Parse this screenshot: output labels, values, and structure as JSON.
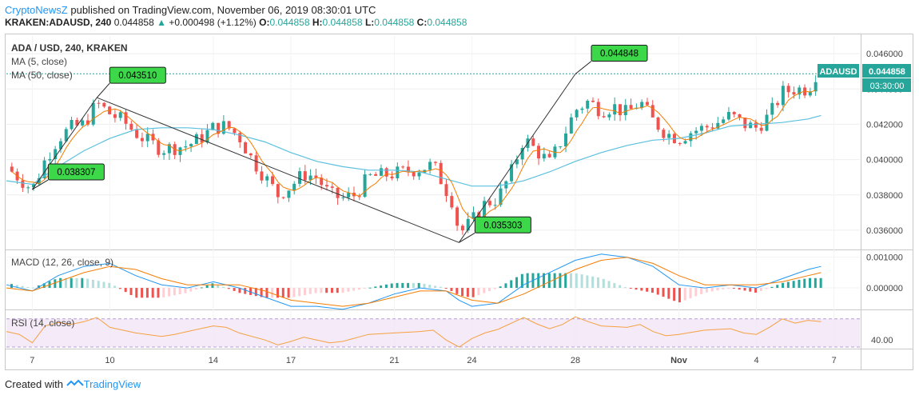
{
  "header": {
    "author": "CryptoNewsZ",
    "published_text": " published on TradingView.com, November 06, 2019 08:30:01 UTC"
  },
  "ticker": {
    "symbol": "KRAKEN:ADAUSD, 240",
    "last": "0.044858",
    "arrow": "▲",
    "change": "+0.000498 (+1.12%)",
    "o_label": "O:",
    "o": "0.044858",
    "h_label": "H:",
    "h": "0.044858",
    "l_label": "L:",
    "l": "0.044858",
    "c_label": "C:",
    "c": "0.044858"
  },
  "legend": {
    "title": "ADA / USD, 240, KRAKEN",
    "ma5": "MA (5, close)",
    "ma50": "MA (50, close)",
    "macd": "MACD (12, 26, close, 9)",
    "rsi": "RSI (14, close)"
  },
  "price_tag": {
    "symbol": "ADAUSD",
    "value": "0.044858",
    "countdown": "03:30:00"
  },
  "callouts": [
    "0.043510",
    "0.038307",
    "0.044848",
    "0.035303"
  ],
  "footer": {
    "created": "Created with",
    "brand": "TradingView"
  },
  "chart_data": {
    "type": "candlestick",
    "main": {
      "y_ticks": [
        "0.046000",
        "0.044000",
        "0.042000",
        "0.040000",
        "0.038000",
        "0.036000"
      ],
      "ylim": [
        0.035,
        0.047
      ],
      "x_ticks": [
        "7",
        "10",
        "14",
        "17",
        "21",
        "24",
        "28",
        "Nov",
        "4",
        "7"
      ],
      "x_tick_days": [
        7,
        10,
        14,
        17,
        21,
        24,
        28,
        32,
        35,
        38
      ],
      "xlim_days": [
        6.0,
        39.0
      ],
      "last_price": 0.044858,
      "trend_points": [
        {
          "day": 7.0,
          "value": 0.038307
        },
        {
          "day": 9.5,
          "value": 0.04351
        },
        {
          "day": 23.5,
          "value": 0.035303
        },
        {
          "day": 28.0,
          "value": 0.044848
        }
      ],
      "price_path": [
        [
          6.0,
          0.0396
        ],
        [
          7.0,
          0.0383
        ],
        [
          7.5,
          0.04
        ],
        [
          8.0,
          0.0412
        ],
        [
          8.5,
          0.0418
        ],
        [
          9.0,
          0.042
        ],
        [
          9.5,
          0.0432
        ],
        [
          10.0,
          0.0426
        ],
        [
          10.5,
          0.0422
        ],
        [
          11.0,
          0.0415
        ],
        [
          11.5,
          0.041
        ],
        [
          12.0,
          0.0406
        ],
        [
          13.0,
          0.0408
        ],
        [
          13.5,
          0.0412
        ],
        [
          14.0,
          0.0418
        ],
        [
          14.5,
          0.0419
        ],
        [
          15.0,
          0.0413
        ],
        [
          15.5,
          0.04
        ],
        [
          16.0,
          0.039
        ],
        [
          16.5,
          0.038
        ],
        [
          17.0,
          0.0385
        ],
        [
          17.5,
          0.0392
        ],
        [
          18.0,
          0.039
        ],
        [
          18.5,
          0.038
        ],
        [
          19.0,
          0.0378
        ],
        [
          19.5,
          0.038
        ],
        [
          20.0,
          0.039
        ],
        [
          21.0,
          0.0392
        ],
        [
          22.0,
          0.0395
        ],
        [
          22.5,
          0.0397
        ],
        [
          23.0,
          0.0383
        ],
        [
          23.3,
          0.0375
        ],
        [
          23.5,
          0.0358
        ],
        [
          24.0,
          0.0365
        ],
        [
          24.5,
          0.0375
        ],
        [
          25.0,
          0.0378
        ],
        [
          25.5,
          0.0392
        ],
        [
          26.0,
          0.0412
        ],
        [
          26.5,
          0.0405
        ],
        [
          27.0,
          0.0398
        ],
        [
          27.5,
          0.0412
        ],
        [
          28.0,
          0.0428
        ],
        [
          28.5,
          0.0433
        ],
        [
          29.0,
          0.0428
        ],
        [
          29.5,
          0.043
        ],
        [
          30.0,
          0.0426
        ],
        [
          30.5,
          0.0433
        ],
        [
          31.0,
          0.0422
        ],
        [
          31.5,
          0.0415
        ],
        [
          32.0,
          0.0412
        ],
        [
          32.5,
          0.0416
        ],
        [
          33.0,
          0.0418
        ],
        [
          33.5,
          0.0421
        ],
        [
          34.0,
          0.0425
        ],
        [
          34.5,
          0.042
        ],
        [
          35.0,
          0.0418
        ],
        [
          35.5,
          0.0425
        ],
        [
          36.0,
          0.0438
        ],
        [
          36.5,
          0.044
        ],
        [
          37.0,
          0.044
        ],
        [
          37.3,
          0.04486
        ]
      ],
      "ma50_path": [
        [
          6.0,
          0.0388
        ],
        [
          7.0,
          0.0386
        ],
        [
          8.0,
          0.0396
        ],
        [
          9.0,
          0.0405
        ],
        [
          10.0,
          0.0412
        ],
        [
          11.0,
          0.0417
        ],
        [
          12.0,
          0.0418
        ],
        [
          13.0,
          0.0418
        ],
        [
          14.0,
          0.0417
        ],
        [
          15.0,
          0.0414
        ],
        [
          16.0,
          0.041
        ],
        [
          17.0,
          0.0404
        ],
        [
          18.0,
          0.0399
        ],
        [
          19.0,
          0.0396
        ],
        [
          20.0,
          0.0394
        ],
        [
          21.0,
          0.0394
        ],
        [
          22.0,
          0.0393
        ],
        [
          23.0,
          0.0389
        ],
        [
          24.0,
          0.0385
        ],
        [
          25.0,
          0.0385
        ],
        [
          26.0,
          0.0388
        ],
        [
          27.0,
          0.0393
        ],
        [
          28.0,
          0.0399
        ],
        [
          29.0,
          0.0404
        ],
        [
          30.0,
          0.0408
        ],
        [
          31.0,
          0.0411
        ],
        [
          32.0,
          0.0412
        ],
        [
          33.0,
          0.0415
        ],
        [
          34.0,
          0.0419
        ],
        [
          35.0,
          0.042
        ],
        [
          36.0,
          0.0421
        ],
        [
          37.0,
          0.0423
        ],
        [
          37.5,
          0.0425
        ]
      ]
    },
    "macd": {
      "y_ticks": [
        "0.001000",
        "0.000000"
      ],
      "ylim": [
        -0.00065,
        0.0012
      ],
      "macd_path": [
        [
          6.0,
          0.0001
        ],
        [
          7.0,
          -0.0001
        ],
        [
          8.0,
          0.0004
        ],
        [
          9.0,
          0.0007
        ],
        [
          10.0,
          0.0008
        ],
        [
          11.0,
          0.0004
        ],
        [
          12.0,
          0.0001
        ],
        [
          13.0,
          0.0
        ],
        [
          14.0,
          0.0002
        ],
        [
          15.0,
          0.0
        ],
        [
          16.0,
          -0.0003
        ],
        [
          17.0,
          -0.0006
        ],
        [
          18.0,
          -0.0006
        ],
        [
          19.0,
          -0.0007
        ],
        [
          20.0,
          -0.0005
        ],
        [
          21.0,
          -0.0002
        ],
        [
          22.0,
          0.0
        ],
        [
          23.0,
          -0.0001
        ],
        [
          23.5,
          -0.0004
        ],
        [
          24.0,
          -0.0006
        ],
        [
          25.0,
          -0.0005
        ],
        [
          26.0,
          0.0001
        ],
        [
          27.0,
          0.0005
        ],
        [
          28.0,
          0.0009
        ],
        [
          29.0,
          0.0011
        ],
        [
          30.0,
          0.001
        ],
        [
          31.0,
          0.0007
        ],
        [
          32.0,
          0.0001
        ],
        [
          33.0,
          0.0
        ],
        [
          34.0,
          0.0001
        ],
        [
          35.0,
          0.0
        ],
        [
          36.0,
          0.0003
        ],
        [
          37.0,
          0.0006
        ],
        [
          37.5,
          0.0007
        ]
      ],
      "signal_path": [
        [
          6.0,
          0.0
        ],
        [
          7.0,
          -0.0001
        ],
        [
          8.0,
          0.0002
        ],
        [
          9.0,
          0.0005
        ],
        [
          10.0,
          0.0007
        ],
        [
          11.0,
          0.0006
        ],
        [
          12.0,
          0.0003
        ],
        [
          13.0,
          0.0001
        ],
        [
          14.0,
          0.0001
        ],
        [
          15.0,
          0.0001
        ],
        [
          16.0,
          -0.0001
        ],
        [
          17.0,
          -0.0004
        ],
        [
          18.0,
          -0.0005
        ],
        [
          19.0,
          -0.0006
        ],
        [
          20.0,
          -0.0005
        ],
        [
          21.0,
          -0.0003
        ],
        [
          22.0,
          -0.0001
        ],
        [
          23.0,
          -0.0001
        ],
        [
          24.0,
          -0.0004
        ],
        [
          25.0,
          -0.0005
        ],
        [
          26.0,
          -0.0002
        ],
        [
          27.0,
          0.0002
        ],
        [
          28.0,
          0.0006
        ],
        [
          29.0,
          0.0009
        ],
        [
          30.0,
          0.001
        ],
        [
          31.0,
          0.0008
        ],
        [
          32.0,
          0.0004
        ],
        [
          33.0,
          0.0001
        ],
        [
          34.0,
          0.0001
        ],
        [
          35.0,
          0.0001
        ],
        [
          36.0,
          0.0002
        ],
        [
          37.0,
          0.0004
        ],
        [
          37.5,
          0.0005
        ]
      ]
    },
    "rsi": {
      "y_ticks": [
        "40.00"
      ],
      "ylim": [
        30,
        80
      ],
      "band": [
        30,
        70
      ],
      "rsi_path": [
        [
          6.0,
          52
        ],
        [
          6.5,
          48
        ],
        [
          7.0,
          36
        ],
        [
          7.5,
          60
        ],
        [
          8.0,
          65
        ],
        [
          8.5,
          62
        ],
        [
          9.0,
          66
        ],
        [
          9.5,
          72
        ],
        [
          10.0,
          58
        ],
        [
          11.0,
          50
        ],
        [
          12.0,
          45
        ],
        [
          12.5,
          48
        ],
        [
          13.0,
          52
        ],
        [
          14.0,
          60
        ],
        [
          14.5,
          58
        ],
        [
          15.0,
          50
        ],
        [
          16.0,
          40
        ],
        [
          16.5,
          33
        ],
        [
          17.0,
          38
        ],
        [
          17.5,
          44
        ],
        [
          18.0,
          40
        ],
        [
          18.5,
          36
        ],
        [
          19.0,
          38
        ],
        [
          20.0,
          48
        ],
        [
          21.0,
          50
        ],
        [
          22.0,
          52
        ],
        [
          22.5,
          54
        ],
        [
          23.0,
          40
        ],
        [
          23.5,
          30
        ],
        [
          24.0,
          42
        ],
        [
          24.5,
          50
        ],
        [
          25.0,
          55
        ],
        [
          26.0,
          72
        ],
        [
          26.5,
          63
        ],
        [
          27.0,
          56
        ],
        [
          27.5,
          62
        ],
        [
          28.0,
          73
        ],
        [
          28.5,
          66
        ],
        [
          29.0,
          60
        ],
        [
          30.0,
          58
        ],
        [
          30.5,
          62
        ],
        [
          31.0,
          52
        ],
        [
          31.5,
          46
        ],
        [
          32.0,
          48
        ],
        [
          33.0,
          54
        ],
        [
          34.0,
          56
        ],
        [
          34.5,
          50
        ],
        [
          35.0,
          48
        ],
        [
          35.5,
          58
        ],
        [
          36.0,
          70
        ],
        [
          36.5,
          64
        ],
        [
          37.0,
          68
        ],
        [
          37.5,
          66
        ]
      ]
    }
  }
}
